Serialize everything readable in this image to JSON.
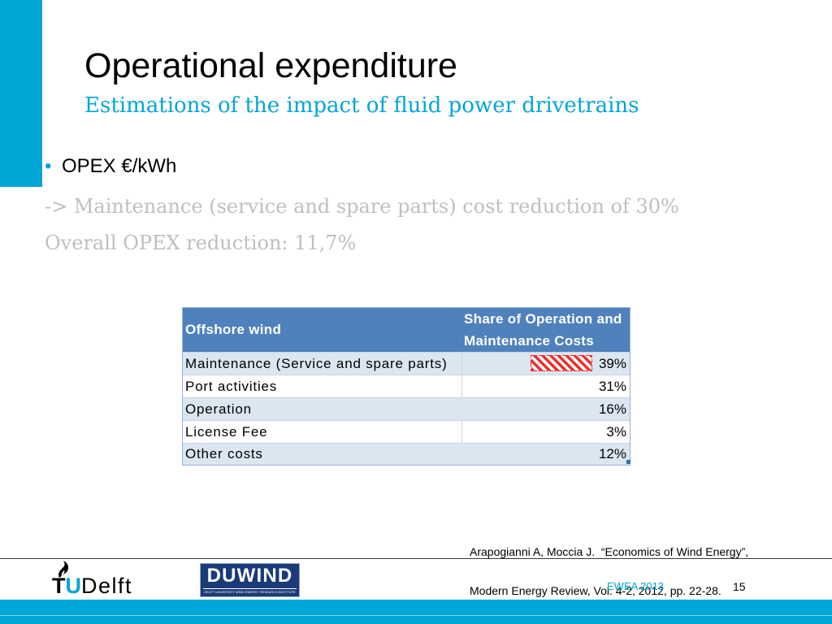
{
  "slide": {
    "title": "Operational expenditure",
    "subtitle": "Estimations of the impact of fluid power drivetrains",
    "bullet": {
      "marker": "•",
      "text": "OPEX €/kWh"
    },
    "notes": [
      "-> Maintenance (service and spare parts) cost reduction of 30%",
      "Overall OPEX reduction: 11,7%"
    ]
  },
  "table": {
    "header": {
      "category": "Offshore wind",
      "share": "Share of Operation and Maintenance Costs"
    },
    "rows": [
      {
        "label": "Maintenance (Service and spare parts)",
        "value": "39%"
      },
      {
        "label": "Port activities",
        "value": "31%"
      },
      {
        "label": "Operation",
        "value": "16%"
      },
      {
        "label": "License Fee",
        "value": "3%"
      },
      {
        "label": "Other costs",
        "value": "12%"
      }
    ]
  },
  "reference": {
    "line1": "Arapogianni A, Moccia J.  “Economics of Wind Energy”,",
    "line2": "Modern Energy Review, Vol. 4-2, 2012, pp. 22-28."
  },
  "footer": {
    "event": "EWEA 2013",
    "page_number": "15",
    "logos": {
      "tudelft": {
        "tu": "TU",
        "name": "Delft"
      },
      "duwind": {
        "name": "DUWIND",
        "tagline": "DELFT UNIVERSITY WIND ENERGY RESEARCH INSTITUTE"
      }
    }
  },
  "colors": {
    "accent": "#00a6d6",
    "table_header": "#4f81bd",
    "table_band": "#dce6f1",
    "note_text": "#bfbfbf",
    "highlight": "#e8312f"
  }
}
